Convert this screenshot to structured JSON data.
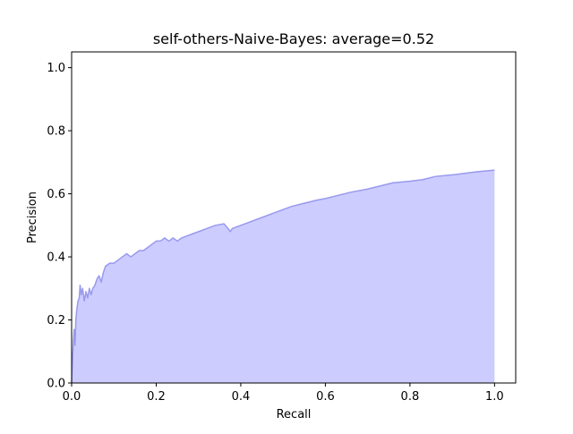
{
  "chart_data": {
    "type": "area",
    "title": "self-others-Naive-Bayes: average=0.52",
    "xlabel": "Recall",
    "ylabel": "Precision",
    "xlim": [
      0.0,
      1.05
    ],
    "ylim": [
      0.0,
      1.05
    ],
    "xticks": [
      0.0,
      0.2,
      0.4,
      0.6,
      0.8,
      1.0
    ],
    "xtick_labels": [
      "0.0",
      "0.2",
      "0.4",
      "0.6",
      "0.8",
      "1.0"
    ],
    "yticks": [
      0.0,
      0.2,
      0.4,
      0.6,
      0.8,
      1.0
    ],
    "ytick_labels": [
      "0.0",
      "0.2",
      "0.4",
      "0.6",
      "0.8",
      "1.0"
    ],
    "grid": false,
    "colors": {
      "fill": "#ccccff",
      "line": "#9999ee"
    },
    "series": [
      {
        "x": [
          0.0,
          0.002,
          0.004,
          0.006,
          0.008,
          0.01,
          0.012,
          0.015,
          0.018,
          0.02,
          0.023,
          0.026,
          0.03,
          0.034,
          0.038,
          0.042,
          0.046,
          0.05,
          0.055,
          0.06,
          0.065,
          0.07,
          0.075,
          0.08,
          0.09,
          0.1,
          0.11,
          0.12,
          0.13,
          0.14,
          0.15,
          0.16,
          0.17,
          0.18,
          0.19,
          0.2,
          0.21,
          0.22,
          0.23,
          0.24,
          0.25,
          0.26,
          0.28,
          0.3,
          0.32,
          0.34,
          0.36,
          0.37,
          0.375,
          0.38,
          0.4,
          0.42,
          0.44,
          0.46,
          0.48,
          0.5,
          0.52,
          0.55,
          0.58,
          0.6,
          0.63,
          0.66,
          0.7,
          0.73,
          0.76,
          0.8,
          0.83,
          0.86,
          0.9,
          0.93,
          0.96,
          1.0
        ],
        "y": [
          0.0,
          0.07,
          0.13,
          0.17,
          0.12,
          0.2,
          0.23,
          0.26,
          0.27,
          0.31,
          0.28,
          0.3,
          0.26,
          0.29,
          0.27,
          0.3,
          0.28,
          0.3,
          0.31,
          0.33,
          0.34,
          0.32,
          0.35,
          0.37,
          0.38,
          0.38,
          0.39,
          0.4,
          0.41,
          0.4,
          0.41,
          0.42,
          0.42,
          0.43,
          0.44,
          0.45,
          0.45,
          0.46,
          0.45,
          0.46,
          0.45,
          0.46,
          0.47,
          0.48,
          0.49,
          0.5,
          0.505,
          0.49,
          0.48,
          0.49,
          0.5,
          0.51,
          0.52,
          0.53,
          0.54,
          0.55,
          0.56,
          0.57,
          0.58,
          0.585,
          0.595,
          0.605,
          0.615,
          0.625,
          0.635,
          0.64,
          0.645,
          0.655,
          0.66,
          0.665,
          0.67,
          0.675
        ]
      }
    ]
  }
}
